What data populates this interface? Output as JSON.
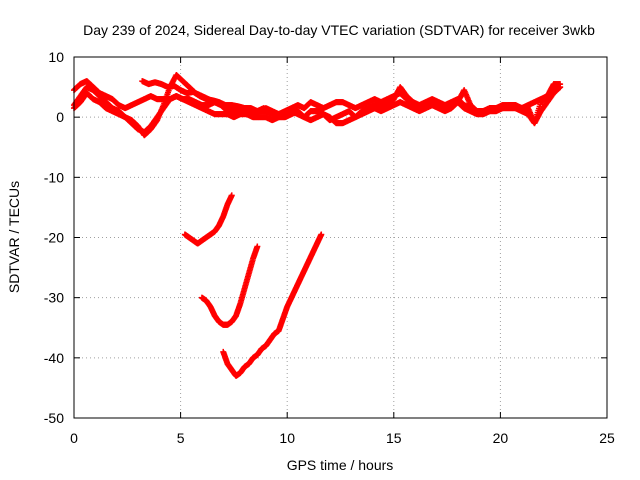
{
  "chart_data": {
    "type": "scatter",
    "title": "Day 239 of 2024, Sidereal Day-to-day VTEC variation (SDTVAR) for receiver 3wkb",
    "xlabel": "GPS time / hours",
    "ylabel": "SDTVAR / TECUs",
    "xlim": [
      0,
      25
    ],
    "ylim": [
      -50,
      10
    ],
    "xticks": [
      0,
      5,
      10,
      15,
      20,
      25
    ],
    "yticks": [
      10,
      0,
      -10,
      -20,
      -30,
      -40,
      -50
    ],
    "grid": true,
    "marker": "plus",
    "color": "#ff0000",
    "series": [
      {
        "x": [
          0.0,
          0.3,
          0.6,
          0.9,
          1.2,
          1.5,
          1.8,
          2.1,
          2.4,
          2.7,
          3.0,
          3.3,
          3.6,
          3.9,
          4.2,
          4.5,
          4.8,
          5.1,
          5.4,
          5.7,
          6.0,
          6.3,
          6.6,
          6.9,
          7.2,
          7.5,
          7.8,
          8.1,
          8.4,
          8.7,
          9.0,
          9.3,
          9.6,
          9.9,
          10.2,
          10.5,
          10.8,
          11.1,
          11.4,
          11.7,
          12.0,
          12.3,
          12.6,
          12.9,
          13.2,
          13.5,
          13.8,
          14.1,
          14.4,
          14.7,
          15.0,
          15.3,
          15.6,
          15.9,
          16.2,
          16.5,
          16.8,
          17.1,
          17.4,
          17.7,
          18.0,
          18.3,
          18.6,
          18.9,
          19.2,
          19.5,
          19.8,
          20.1,
          20.4,
          20.7,
          21.0,
          21.3,
          21.6,
          21.9,
          22.2,
          22.5,
          22.8
        ],
        "y": [
          4.5,
          5.5,
          6.0,
          5.0,
          4.0,
          3.5,
          3.0,
          2.0,
          1.5,
          2.0,
          2.5,
          3.0,
          3.5,
          3.0,
          3.0,
          3.0,
          3.5,
          3.0,
          3.0,
          2.5,
          2.0,
          2.0,
          2.5,
          2.0,
          1.5,
          1.0,
          1.5,
          1.5,
          1.0,
          1.0,
          1.5,
          1.0,
          0.5,
          1.0,
          1.5,
          2.0,
          1.5,
          2.5,
          2.0,
          1.5,
          2.0,
          2.5,
          2.5,
          2.0,
          1.5,
          2.0,
          2.5,
          3.0,
          2.5,
          3.0,
          3.5,
          4.0,
          3.0,
          2.5,
          2.0,
          2.5,
          3.0,
          2.5,
          2.0,
          2.5,
          3.0,
          2.0,
          1.5,
          1.0,
          1.0,
          1.5,
          1.5,
          2.0,
          2.0,
          2.0,
          1.5,
          2.0,
          2.5,
          3.0,
          3.5,
          4.5,
          5.0
        ]
      },
      {
        "x": [
          0.0,
          0.3,
          0.6,
          0.9,
          1.2,
          1.5,
          1.8,
          2.1,
          2.4,
          2.7,
          3.0,
          3.3,
          3.6,
          3.9,
          4.2,
          4.5,
          4.8,
          5.1,
          5.4,
          5.7,
          6.0,
          6.3,
          6.6,
          6.9,
          7.2,
          7.5,
          7.8,
          8.1,
          8.4,
          8.7,
          9.0,
          9.3,
          9.6,
          9.9,
          10.2,
          10.5,
          10.8,
          11.1,
          11.4,
          11.7,
          12.0,
          12.3,
          12.6,
          12.9,
          13.2,
          13.5,
          13.8,
          14.1,
          14.4,
          14.7,
          15.0,
          15.3,
          15.6,
          15.9,
          16.2,
          16.5,
          16.8,
          17.1,
          17.4,
          17.7,
          18.0,
          18.3,
          18.6,
          18.9,
          19.2,
          19.5,
          19.8,
          20.1,
          20.4,
          20.7,
          21.0,
          21.3,
          21.6,
          21.9,
          22.2,
          22.5,
          22.8
        ],
        "y": [
          2.0,
          3.5,
          5.0,
          4.5,
          3.5,
          2.5,
          1.5,
          1.0,
          0.0,
          -1.0,
          -2.0,
          -2.5,
          -1.5,
          0.0,
          1.5,
          3.0,
          3.5,
          3.0,
          2.5,
          2.0,
          1.5,
          1.0,
          0.5,
          0.5,
          0.5,
          0.0,
          0.5,
          0.5,
          0.0,
          0.0,
          0.0,
          -0.5,
          0.0,
          0.5,
          1.0,
          0.5,
          0.0,
          -0.5,
          0.0,
          0.5,
          0.0,
          -1.0,
          -1.0,
          -0.5,
          0.0,
          0.5,
          1.0,
          1.5,
          1.0,
          1.5,
          2.0,
          2.5,
          2.0,
          1.5,
          1.0,
          1.5,
          2.0,
          2.0,
          1.5,
          2.0,
          2.5,
          1.5,
          1.0,
          0.5,
          0.5,
          1.0,
          1.0,
          1.5,
          1.5,
          1.5,
          1.0,
          0.5,
          -1.0,
          1.0,
          2.5,
          4.0,
          5.0
        ]
      },
      {
        "x": [
          0.0,
          0.3,
          0.6,
          0.9,
          1.2,
          1.5,
          1.8,
          2.1,
          2.4,
          2.7,
          3.0,
          3.3,
          3.6,
          3.9,
          4.2,
          4.5,
          4.8,
          5.1,
          5.4,
          5.7,
          6.0,
          6.3,
          6.6,
          6.9,
          7.2,
          7.5,
          7.8,
          8.1,
          8.4,
          8.7,
          9.0,
          9.3,
          9.6,
          9.9,
          10.2,
          10.5,
          10.8,
          11.1,
          11.4,
          11.7,
          12.0,
          12.3,
          12.6,
          12.9,
          13.2,
          13.5,
          13.8,
          14.1,
          14.4,
          14.7,
          15.0,
          15.3,
          15.6,
          15.9,
          16.2,
          16.5,
          16.8,
          17.1,
          17.4,
          17.7,
          18.0,
          18.3,
          18.6,
          18.9,
          19.2,
          19.5,
          19.8,
          20.1,
          20.4,
          20.7,
          21.0,
          21.3,
          21.6,
          21.9,
          22.2,
          22.5,
          22.8
        ],
        "y": [
          1.5,
          2.5,
          4.0,
          3.0,
          2.5,
          1.5,
          1.0,
          0.5,
          0.0,
          -0.5,
          -1.5,
          -3.0,
          -2.0,
          -0.5,
          2.0,
          5.0,
          7.0,
          6.0,
          5.0,
          4.0,
          3.5,
          3.0,
          2.5,
          2.0,
          1.0,
          0.5,
          1.0,
          1.0,
          0.5,
          1.0,
          1.0,
          0.5,
          0.0,
          0.0,
          0.5,
          1.0,
          0.0,
          1.0,
          1.0,
          0.5,
          -0.5,
          0.0,
          0.5,
          1.0,
          0.0,
          1.0,
          1.5,
          2.0,
          2.0,
          2.0,
          3.0,
          5.0,
          3.5,
          2.5,
          1.5,
          2.0,
          2.0,
          1.5,
          1.0,
          1.5,
          2.5,
          4.5,
          2.0,
          1.0,
          1.0,
          1.5,
          1.5,
          1.5,
          2.0,
          2.0,
          1.5,
          1.5,
          -1.0,
          2.5,
          3.5,
          5.5,
          5.5
        ]
      },
      {
        "x": [
          3.2,
          3.5,
          3.8,
          4.1,
          4.4,
          4.7,
          5.0,
          5.3,
          5.6,
          5.9,
          6.2,
          6.5,
          6.8,
          7.1,
          7.4,
          7.7,
          8.0,
          8.3,
          8.6,
          8.9,
          9.2,
          9.5
        ],
        "y": [
          6.0,
          5.5,
          5.8,
          5.5,
          5.0,
          5.2,
          4.5,
          4.0,
          4.2,
          3.5,
          3.0,
          2.8,
          2.5,
          2.0,
          2.0,
          1.8,
          1.5,
          1.5,
          1.0,
          1.5,
          1.0,
          0.5
        ]
      },
      {
        "x": [
          5.2,
          5.4,
          5.6,
          5.8,
          6.0,
          6.2,
          6.4,
          6.6,
          6.8,
          7.0,
          7.2,
          7.4
        ],
        "y": [
          -19.5,
          -20.0,
          -20.5,
          -21.0,
          -20.5,
          -20.0,
          -19.5,
          -19.0,
          -18.0,
          -16.5,
          -14.5,
          -13.0
        ]
      },
      {
        "x": [
          6.0,
          6.2,
          6.4,
          6.6,
          6.8,
          7.0,
          7.2,
          7.4,
          7.6,
          7.8,
          8.0,
          8.2,
          8.4,
          8.6
        ],
        "y": [
          -30.0,
          -30.5,
          -31.5,
          -33.0,
          -34.0,
          -34.5,
          -34.5,
          -34.0,
          -33.0,
          -31.0,
          -28.5,
          -26.0,
          -23.5,
          -21.5
        ]
      },
      {
        "x": [
          7.0,
          7.2,
          7.4,
          7.6,
          7.8,
          8.0,
          8.2,
          8.4,
          8.6,
          8.8,
          9.0,
          9.2,
          9.4,
          9.6,
          9.8,
          10.0,
          10.2,
          10.4,
          10.6,
          10.8,
          11.0,
          11.2,
          11.4,
          11.6
        ],
        "y": [
          -39.0,
          -41.0,
          -42.0,
          -43.0,
          -42.5,
          -41.5,
          -41.0,
          -40.0,
          -39.5,
          -38.5,
          -38.0,
          -37.0,
          -36.0,
          -35.5,
          -33.5,
          -31.5,
          -30.0,
          -28.5,
          -27.0,
          -25.5,
          -24.0,
          -22.5,
          -21.0,
          -19.5
        ]
      }
    ]
  }
}
